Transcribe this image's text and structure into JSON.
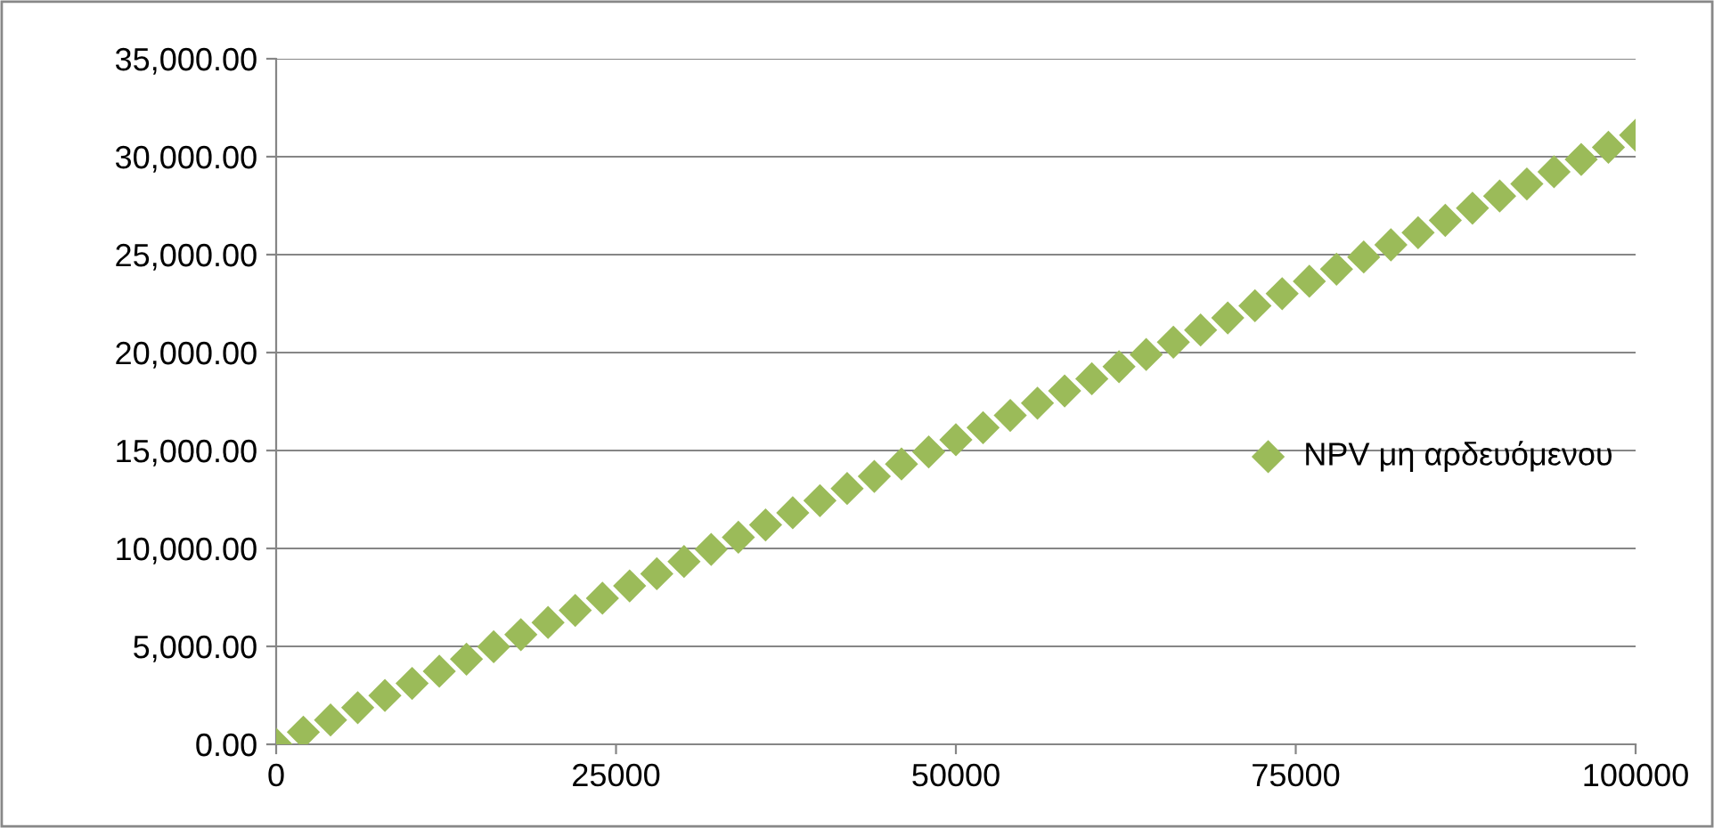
{
  "chart_data": {
    "type": "scatter",
    "marker": "diamond",
    "grid": "y",
    "legend": "right",
    "xlim": [
      0,
      100000
    ],
    "xticks": [
      0,
      25000,
      50000,
      75000,
      100000
    ],
    "ylim": [
      0,
      35000
    ],
    "yticks": [
      {
        "value": 0,
        "label": "0.00"
      },
      {
        "value": 5000,
        "label": "5,000.00"
      },
      {
        "value": 10000,
        "label": "10,000.00"
      },
      {
        "value": 15000,
        "label": "15,000.00"
      },
      {
        "value": 20000,
        "label": "20,000.00"
      },
      {
        "value": 25000,
        "label": "25,000.00"
      },
      {
        "value": 30000,
        "label": "30,000.00"
      },
      {
        "value": 35000,
        "label": "35,000.00"
      }
    ],
    "series": [
      {
        "name": "NPV μη αρδευόμενου",
        "color": "#9bbb59",
        "x": [
          0,
          2000,
          4000,
          6000,
          8000,
          10000,
          12000,
          14000,
          16000,
          18000,
          20000,
          22000,
          24000,
          26000,
          28000,
          30000,
          32000,
          34000,
          36000,
          38000,
          40000,
          42000,
          44000,
          46000,
          48000,
          50000,
          52000,
          54000,
          56000,
          58000,
          60000,
          62000,
          64000,
          66000,
          68000,
          70000,
          72000,
          74000,
          76000,
          78000,
          80000,
          82000,
          84000,
          86000,
          88000,
          90000,
          92000,
          94000,
          96000,
          98000,
          100000
        ],
        "values": [
          0,
          620,
          1240,
          1870,
          2490,
          3110,
          3730,
          4350,
          4980,
          5600,
          6220,
          6840,
          7460,
          8090,
          8710,
          9330,
          9950,
          10570,
          11200,
          11820,
          12440,
          13060,
          13680,
          14310,
          14930,
          15550,
          16170,
          16790,
          17420,
          18040,
          18660,
          19280,
          19900,
          20530,
          21150,
          21770,
          22390,
          23010,
          23640,
          24260,
          24880,
          25500,
          26120,
          26750,
          27370,
          27990,
          28610,
          29230,
          29860,
          30480,
          31100
        ]
      }
    ]
  }
}
